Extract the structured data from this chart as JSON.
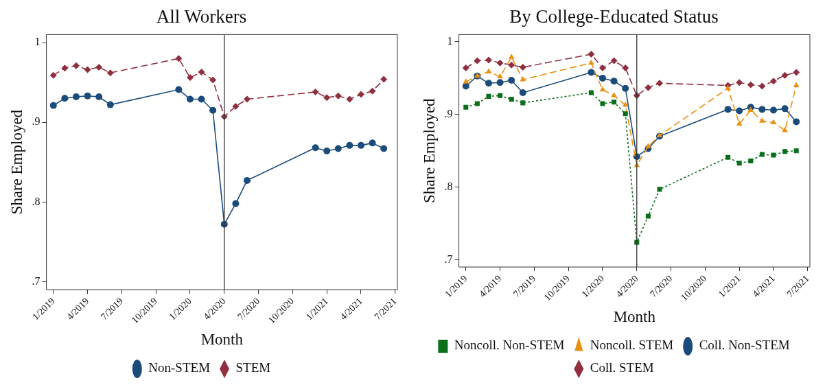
{
  "chart_data": [
    {
      "type": "line",
      "title": "All Workers",
      "xlabel": "Month",
      "ylabel": "Share Employed",
      "x": [
        "2019-01",
        "2019-02",
        "2019-03",
        "2019-04",
        "2019-05",
        "2019-06",
        "2019-12",
        "2020-01",
        "2020-02",
        "2020-03",
        "2020-04",
        "2020-05",
        "2020-06",
        "2020-12",
        "2021-01",
        "2021-02",
        "2021-03",
        "2021-04",
        "2021-05",
        "2021-06"
      ],
      "xlim": [
        "2018-12-13",
        "2021-07-07"
      ],
      "xticks": [
        {
          "value": "2019-01",
          "label": "1/2019"
        },
        {
          "value": "2019-04",
          "label": "4/2019"
        },
        {
          "value": "2019-07",
          "label": "7/2019"
        },
        {
          "value": "2019-10",
          "label": "10/2019"
        },
        {
          "value": "2020-01",
          "label": "1/2020"
        },
        {
          "value": "2020-04",
          "label": "4/2020"
        },
        {
          "value": "2020-07",
          "label": "7/2020"
        },
        {
          "value": "2020-10",
          "label": "10/2020"
        },
        {
          "value": "2021-01",
          "label": "1/2021"
        },
        {
          "value": "2021-04",
          "label": "4/2021"
        },
        {
          "value": "2021-07",
          "label": "7/2021"
        }
      ],
      "ylim": [
        0.69,
        1.01
      ],
      "yticks": [
        {
          "value": 0.7,
          "label": ".7"
        },
        {
          "value": 0.8,
          "label": ".8"
        },
        {
          "value": 0.9,
          "label": ".9"
        },
        1
      ],
      "series": [
        {
          "name": "STEM",
          "color": "#8f2f3f",
          "marker": "diamond",
          "line_style": "dashed",
          "values": [
            0.959,
            0.968,
            0.971,
            0.966,
            0.969,
            0.962,
            0.98,
            0.956,
            0.963,
            0.953,
            0.907,
            0.92,
            0.929,
            0.938,
            0.931,
            0.933,
            0.929,
            0.935,
            0.939,
            0.954
          ]
        },
        {
          "name": "Non-STEM",
          "color": "#1b4b7b",
          "marker": "circle",
          "line_style": "solid",
          "values": [
            0.921,
            0.93,
            0.932,
            0.933,
            0.932,
            0.922,
            0.941,
            0.929,
            0.929,
            0.915,
            0.772,
            0.798,
            0.827,
            0.868,
            0.864,
            0.867,
            0.871,
            0.871,
            0.874,
            0.867
          ]
        }
      ],
      "ref_lines": [
        {
          "axis": "x",
          "value": "2020-04",
          "color": "#333333"
        }
      ],
      "legend": "bottom",
      "grid": false
    },
    {
      "type": "line",
      "title": "By College-Educated Status",
      "xlabel": "Month",
      "ylabel": "Share Employed",
      "x": [
        "2019-01",
        "2019-02",
        "2019-03",
        "2019-04",
        "2019-05",
        "2019-06",
        "2019-12",
        "2020-01",
        "2020-02",
        "2020-03",
        "2020-04",
        "2020-05",
        "2020-06",
        "2020-12",
        "2021-01",
        "2021-02",
        "2021-03",
        "2021-04",
        "2021-05",
        "2021-06"
      ],
      "xlim": [
        "2018-12-13",
        "2021-07-07"
      ],
      "xticks": [
        {
          "value": "2019-01",
          "label": "1/2019"
        },
        {
          "value": "2019-04",
          "label": "4/2019"
        },
        {
          "value": "2019-07",
          "label": "7/2019"
        },
        {
          "value": "2019-10",
          "label": "10/2019"
        },
        {
          "value": "2020-01",
          "label": "1/2020"
        },
        {
          "value": "2020-04",
          "label": "4/2020"
        },
        {
          "value": "2020-07",
          "label": "7/2020"
        },
        {
          "value": "2020-10",
          "label": "10/2020"
        },
        {
          "value": "2021-01",
          "label": "1/2021"
        },
        {
          "value": "2021-04",
          "label": "4/2021"
        },
        {
          "value": "2021-07",
          "label": "7/2021"
        }
      ],
      "ylim": [
        0.69,
        1.01
      ],
      "yticks": [
        {
          "value": 0.7,
          "label": ".7"
        },
        {
          "value": 0.8,
          "label": ".8"
        },
        {
          "value": 0.9,
          "label": ".9"
        },
        1
      ],
      "series": [
        {
          "name": "Coll. STEM",
          "color": "#8f2f3f",
          "marker": "diamond",
          "line_style": "dashed",
          "values": [
            0.964,
            0.974,
            0.975,
            0.971,
            0.968,
            0.965,
            0.983,
            0.964,
            0.974,
            0.964,
            0.926,
            0.937,
            0.943,
            0.94,
            0.944,
            0.941,
            0.939,
            0.946,
            0.954,
            0.958
          ]
        },
        {
          "name": "Coll. Non-STEM",
          "color": "#1b4b7b",
          "marker": "circle",
          "line_style": "solid",
          "values": [
            0.939,
            0.953,
            0.943,
            0.944,
            0.947,
            0.93,
            0.958,
            0.95,
            0.946,
            0.936,
            0.842,
            0.853,
            0.87,
            0.907,
            0.905,
            0.91,
            0.907,
            0.906,
            0.908,
            0.89
          ]
        },
        {
          "name": "Noncoll. STEM",
          "color": "#e8900f",
          "marker": "triangle",
          "line_style": "dashed",
          "values": [
            0.945,
            0.953,
            0.959,
            0.952,
            0.979,
            0.948,
            0.971,
            0.934,
            0.926,
            0.913,
            0.83,
            0.856,
            0.871,
            0.936,
            0.887,
            0.906,
            0.891,
            0.889,
            0.878,
            0.94
          ]
        },
        {
          "name": "Noncoll. Non-STEM",
          "color": "#0b6e1a",
          "marker": "square",
          "line_style": "dotted",
          "values": [
            0.91,
            0.915,
            0.925,
            0.926,
            0.921,
            0.916,
            0.93,
            0.915,
            0.917,
            0.901,
            0.724,
            0.76,
            0.797,
            0.841,
            0.833,
            0.836,
            0.845,
            0.844,
            0.849,
            0.85
          ]
        }
      ],
      "ref_lines": [
        {
          "axis": "x",
          "value": "2020-04",
          "color": "#333333"
        }
      ],
      "legend": "bottom",
      "grid": false
    }
  ]
}
